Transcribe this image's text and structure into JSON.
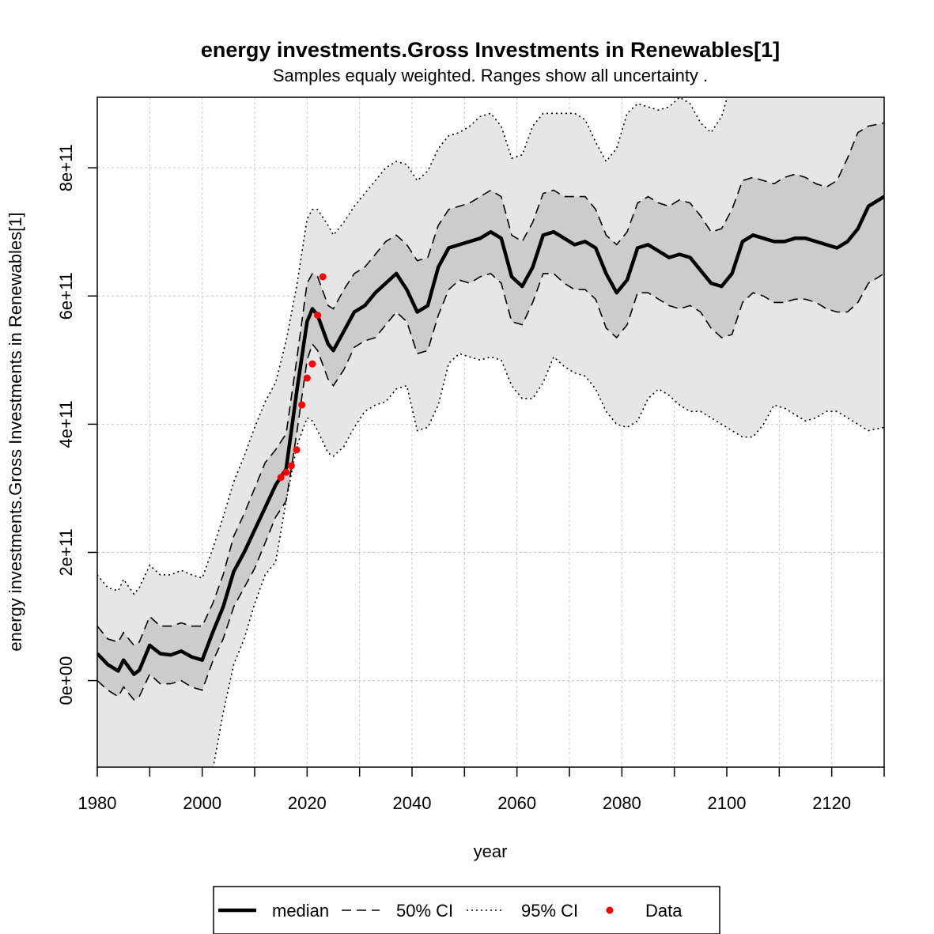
{
  "chart_data": {
    "type": "line",
    "title": "energy investments.Gross Investments in Renewables[1]",
    "subtitle": "Samples equaly weighted. Ranges show  all uncertainty .",
    "xlabel": "year",
    "ylabel": "energy investments.Gross Investments in Renewables[1]",
    "xlim": [
      1980,
      2130
    ],
    "ylim": [
      -135000000000.0,
      910000000000.0
    ],
    "x_ticks": [
      1980,
      2000,
      2020,
      2040,
      2060,
      2080,
      2100,
      2120
    ],
    "x_tick_labels": [
      "1980",
      "2000",
      "2020",
      "2040",
      "2060",
      "2080",
      "2100",
      "2120"
    ],
    "y_ticks": [
      0,
      200000000000.0,
      400000000000.0,
      600000000000.0,
      800000000000.0
    ],
    "y_tick_labels": [
      "0e+00",
      "2e+11",
      "4e+11",
      "6e+11",
      "8e+11"
    ],
    "grid": true,
    "legend_position": "bottom",
    "colors": {
      "band95": "#e6e6e6",
      "band50": "#cccccc",
      "median": "#000000",
      "data": "#ff0000"
    },
    "x": [
      1980,
      1982,
      1984,
      1985,
      1987,
      1988,
      1990,
      1992,
      1994,
      1996,
      1998,
      2000,
      2002,
      2004,
      2006,
      2008,
      2010,
      2012,
      2014,
      2016,
      2018,
      2020,
      2021,
      2022,
      2024,
      2025,
      2027,
      2029,
      2031,
      2033,
      2035,
      2037,
      2039,
      2041,
      2043,
      2045,
      2047,
      2049,
      2051,
      2053,
      2055,
      2057,
      2059,
      2061,
      2063,
      2065,
      2067,
      2069,
      2071,
      2073,
      2075,
      2077,
      2079,
      2081,
      2083,
      2085,
      2087,
      2089,
      2091,
      2093,
      2095,
      2097,
      2099,
      2101,
      2103,
      2105,
      2107,
      2109,
      2111,
      2113,
      2115,
      2117,
      2119,
      2121,
      2123,
      2125,
      2127,
      2130
    ],
    "series": [
      {
        "name": "median",
        "values": [
          42000000000.0,
          25000000000.0,
          15000000000.0,
          32000000000.0,
          10000000000.0,
          16000000000.0,
          55000000000.0,
          42000000000.0,
          40000000000.0,
          46000000000.0,
          37000000000.0,
          32000000000.0,
          75000000000.0,
          115000000000.0,
          170000000000.0,
          200000000000.0,
          235000000000.0,
          270000000000.0,
          305000000000.0,
          330000000000.0,
          450000000000.0,
          560000000000.0,
          580000000000.0,
          570000000000.0,
          525000000000.0,
          515000000000.0,
          545000000000.0,
          575000000000.0,
          585000000000.0,
          605000000000.0,
          620000000000.0,
          635000000000.0,
          610000000000.0,
          575000000000.0,
          585000000000.0,
          645000000000.0,
          675000000000.0,
          680000000000.0,
          685000000000.0,
          690000000000.0,
          700000000000.0,
          690000000000.0,
          630000000000.0,
          615000000000.0,
          645000000000.0,
          695000000000.0,
          700000000000.0,
          690000000000.0,
          680000000000.0,
          685000000000.0,
          675000000000.0,
          635000000000.0,
          605000000000.0,
          625000000000.0,
          675000000000.0,
          680000000000.0,
          670000000000.0,
          660000000000.0,
          665000000000.0,
          660000000000.0,
          640000000000.0,
          620000000000.0,
          615000000000.0,
          635000000000.0,
          685000000000.0,
          695000000000.0,
          690000000000.0,
          685000000000.0,
          685000000000.0,
          690000000000.0,
          690000000000.0,
          685000000000.0,
          680000000000.0,
          675000000000.0,
          685000000000.0,
          705000000000.0,
          740000000000.0,
          755000000000.0
        ]
      },
      {
        "name": "50% CI upper",
        "values": [
          85000000000.0,
          65000000000.0,
          60000000000.0,
          75000000000.0,
          55000000000.0,
          60000000000.0,
          100000000000.0,
          85000000000.0,
          85000000000.0,
          90000000000.0,
          85000000000.0,
          85000000000.0,
          120000000000.0,
          165000000000.0,
          225000000000.0,
          260000000000.0,
          300000000000.0,
          340000000000.0,
          360000000000.0,
          385000000000.0,
          500000000000.0,
          620000000000.0,
          635000000000.0,
          630000000000.0,
          585000000000.0,
          580000000000.0,
          610000000000.0,
          635000000000.0,
          645000000000.0,
          665000000000.0,
          685000000000.0,
          695000000000.0,
          680000000000.0,
          655000000000.0,
          660000000000.0,
          710000000000.0,
          735000000000.0,
          740000000000.0,
          745000000000.0,
          755000000000.0,
          765000000000.0,
          755000000000.0,
          695000000000.0,
          685000000000.0,
          715000000000.0,
          760000000000.0,
          765000000000.0,
          755000000000.0,
          755000000000.0,
          755000000000.0,
          735000000000.0,
          695000000000.0,
          680000000000.0,
          700000000000.0,
          745000000000.0,
          755000000000.0,
          745000000000.0,
          740000000000.0,
          750000000000.0,
          745000000000.0,
          725000000000.0,
          700000000000.0,
          705000000000.0,
          735000000000.0,
          780000000000.0,
          785000000000.0,
          780000000000.0,
          775000000000.0,
          785000000000.0,
          790000000000.0,
          785000000000.0,
          775000000000.0,
          770000000000.0,
          780000000000.0,
          815000000000.0,
          855000000000.0,
          865000000000.0,
          870000000000.0
        ]
      },
      {
        "name": "50% CI lower",
        "values": [
          0,
          -15000000000.0,
          -25000000000.0,
          -10000000000.0,
          -30000000000.0,
          -25000000000.0,
          10000000000.0,
          -5000000000.0,
          -5000000000.0,
          0,
          -10000000000.0,
          -15000000000.0,
          30000000000.0,
          65000000000.0,
          115000000000.0,
          145000000000.0,
          175000000000.0,
          215000000000.0,
          255000000000.0,
          280000000000.0,
          385000000000.0,
          500000000000.0,
          525000000000.0,
          515000000000.0,
          470000000000.0,
          460000000000.0,
          485000000000.0,
          520000000000.0,
          530000000000.0,
          535000000000.0,
          555000000000.0,
          575000000000.0,
          560000000000.0,
          510000000000.0,
          515000000000.0,
          570000000000.0,
          610000000000.0,
          625000000000.0,
          620000000000.0,
          630000000000.0,
          635000000000.0,
          620000000000.0,
          560000000000.0,
          555000000000.0,
          590000000000.0,
          635000000000.0,
          635000000000.0,
          620000000000.0,
          610000000000.0,
          610000000000.0,
          595000000000.0,
          550000000000.0,
          535000000000.0,
          555000000000.0,
          605000000000.0,
          605000000000.0,
          595000000000.0,
          585000000000.0,
          580000000000.0,
          585000000000.0,
          575000000000.0,
          550000000000.0,
          535000000000.0,
          540000000000.0,
          590000000000.0,
          605000000000.0,
          600000000000.0,
          590000000000.0,
          590000000000.0,
          595000000000.0,
          595000000000.0,
          590000000000.0,
          580000000000.0,
          575000000000.0,
          575000000000.0,
          590000000000.0,
          620000000000.0,
          635000000000.0
        ]
      },
      {
        "name": "95% CI upper",
        "values": [
          165000000000.0,
          145000000000.0,
          140000000000.0,
          158000000000.0,
          135000000000.0,
          145000000000.0,
          180000000000.0,
          165000000000.0,
          165000000000.0,
          172000000000.0,
          165000000000.0,
          160000000000.0,
          205000000000.0,
          255000000000.0,
          310000000000.0,
          350000000000.0,
          395000000000.0,
          435000000000.0,
          465000000000.0,
          530000000000.0,
          615000000000.0,
          720000000000.0,
          735000000000.0,
          735000000000.0,
          710000000000.0,
          695000000000.0,
          715000000000.0,
          740000000000.0,
          760000000000.0,
          780000000000.0,
          800000000000.0,
          810000000000.0,
          805000000000.0,
          780000000000.0,
          795000000000.0,
          830000000000.0,
          850000000000.0,
          855000000000.0,
          865000000000.0,
          880000000000.0,
          885000000000.0,
          865000000000.0,
          815000000000.0,
          820000000000.0,
          865000000000.0,
          885000000000.0,
          885000000000.0,
          885000000000.0,
          885000000000.0,
          875000000000.0,
          840000000000.0,
          810000000000.0,
          830000000000.0,
          885000000000.0,
          900000000000.0,
          895000000000.0,
          890000000000.0,
          895000000000.0,
          910000000000.0,
          900000000000.0,
          870000000000.0,
          855000000000.0,
          880000000000.0,
          935000000000.0,
          980000000000.0,
          1000000000000.0,
          1000000000000.0,
          1000000000000.0,
          1000000000000.0,
          1000000000000.0,
          1000000000000.0,
          1000000000000.0,
          1000000000000.0,
          1000000000000.0,
          1000000000000.0,
          1000000000000.0,
          1000000000000.0,
          1000000000000.0
        ]
      },
      {
        "name": "95% CI lower",
        "values": [
          -200000000000.0,
          -200000000000.0,
          -200000000000.0,
          -200000000000.0,
          -200000000000.0,
          -200000000000.0,
          -200000000000.0,
          -200000000000.0,
          -200000000000.0,
          -200000000000.0,
          -200000000000.0,
          -200000000000.0,
          -140000000000.0,
          -50000000000.0,
          25000000000.0,
          65000000000.0,
          120000000000.0,
          165000000000.0,
          185000000000.0,
          280000000000.0,
          365000000000.0,
          410000000000.0,
          405000000000.0,
          390000000000.0,
          355000000000.0,
          350000000000.0,
          365000000000.0,
          395000000000.0,
          420000000000.0,
          430000000000.0,
          435000000000.0,
          455000000000.0,
          460000000000.0,
          390000000000.0,
          395000000000.0,
          430000000000.0,
          495000000000.0,
          510000000000.0,
          505000000000.0,
          500000000000.0,
          505000000000.0,
          500000000000.0,
          460000000000.0,
          440000000000.0,
          440000000000.0,
          465000000000.0,
          505000000000.0,
          490000000000.0,
          480000000000.0,
          475000000000.0,
          455000000000.0,
          420000000000.0,
          400000000000.0,
          395000000000.0,
          405000000000.0,
          440000000000.0,
          455000000000.0,
          445000000000.0,
          430000000000.0,
          420000000000.0,
          420000000000.0,
          410000000000.0,
          400000000000.0,
          390000000000.0,
          380000000000.0,
          380000000000.0,
          400000000000.0,
          430000000000.0,
          425000000000.0,
          415000000000.0,
          405000000000.0,
          410000000000.0,
          420000000000.0,
          420000000000.0,
          410000000000.0,
          400000000000.0,
          390000000000.0,
          395000000000.0
        ]
      }
    ],
    "data_points": {
      "name": "Data",
      "x": [
        2015,
        2016,
        2017,
        2018,
        2019,
        2020,
        2021,
        2022,
        2023
      ],
      "y": [
        317000000000.0,
        325000000000.0,
        335000000000.0,
        360000000000.0,
        430000000000.0,
        472000000000.0,
        494000000000.0,
        570000000000.0,
        630000000000.0
      ]
    },
    "legend": [
      "median",
      "50% CI",
      "95% CI",
      "Data"
    ]
  }
}
